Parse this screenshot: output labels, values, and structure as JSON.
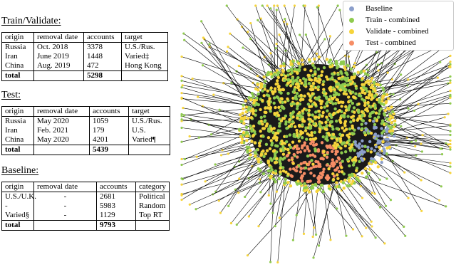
{
  "tables": [
    {
      "title": "Train/Validate:",
      "header": [
        "origin",
        "removal date",
        "accounts",
        "target"
      ],
      "rows": [
        [
          "Russia",
          "Oct. 2018",
          "3378",
          "U.S./Rus."
        ],
        [
          "Iran",
          "June 2019",
          "1448",
          "Varied‡"
        ],
        [
          "China",
          "Aug. 2019",
          "472",
          "Hong Kong"
        ]
      ],
      "total": {
        "label": "total",
        "accounts": "5298"
      }
    },
    {
      "title": "Test:",
      "header": [
        "origin",
        "removal date",
        "accounts",
        "target"
      ],
      "rows": [
        [
          "Russia",
          "May 2020",
          "1059",
          "U.S./Rus."
        ],
        [
          "Iran",
          "Feb. 2021",
          "179",
          "U.S."
        ],
        [
          "China",
          "May 2020",
          "4201",
          "Varied¶"
        ]
      ],
      "total": {
        "label": "total",
        "accounts": "5439"
      }
    },
    {
      "title": "Baseline:",
      "header": [
        "origin",
        "removal date",
        "accounts",
        "category"
      ],
      "rows": [
        [
          "U.S./U.K.",
          "-",
          "2681",
          "Political"
        ],
        [
          "-",
          "-",
          "5983",
          "Random"
        ],
        [
          "Varied§",
          "-",
          "1129",
          "Top RT"
        ]
      ],
      "total": {
        "label": "total",
        "accounts": "9793"
      }
    }
  ],
  "legend": [
    {
      "label": "Baseline",
      "color": "#8c9fcb"
    },
    {
      "label": "Train - combined",
      "color": "#8fcb4e"
    },
    {
      "label": "Validate - combined",
      "color": "#f6d43a"
    },
    {
      "label": "Test - combined",
      "color": "#f68d65"
    }
  ]
}
